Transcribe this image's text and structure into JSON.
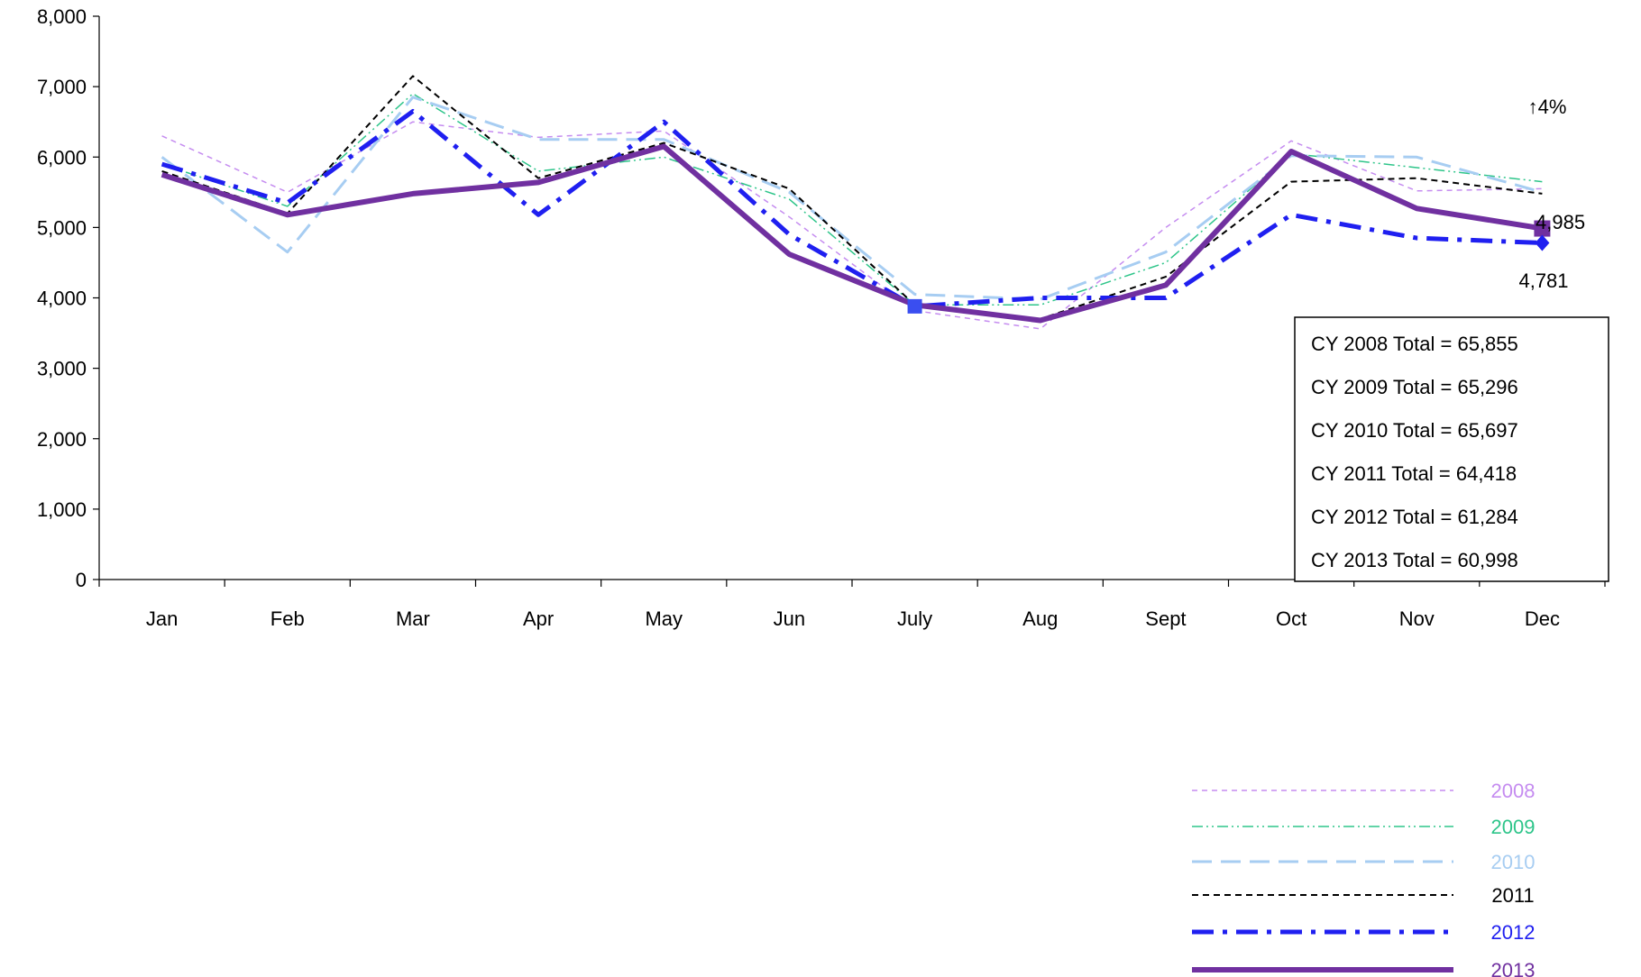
{
  "chart_data": {
    "type": "line",
    "categories": [
      "Jan",
      "Feb",
      "Mar",
      "Apr",
      "May",
      "Jun",
      "July",
      "Aug",
      "Sept",
      "Oct",
      "Nov",
      "Dec"
    ],
    "ylim": [
      0,
      8000
    ],
    "yticks": [
      "0",
      "1,000",
      "2,000",
      "3,000",
      "4,000",
      "5,000",
      "6,000",
      "7,000",
      "8,000"
    ],
    "grid": false,
    "legend_position": "bottom-right",
    "series": [
      {
        "name": "2008",
        "color": "#c58cf0",
        "style": "short-dash",
        "values": [
          6300,
          5500,
          6500,
          6280,
          6370,
          5150,
          3820,
          3560,
          5000,
          6230,
          5520,
          5550
        ]
      },
      {
        "name": "2009",
        "color": "#2ec58a",
        "style": "dash-dot-dot",
        "values": [
          5900,
          5300,
          6900,
          5800,
          6000,
          5400,
          3900,
          3900,
          4500,
          6050,
          5850,
          5650
        ]
      },
      {
        "name": "2010",
        "color": "#a7cdf2",
        "style": "long-dash",
        "values": [
          6000,
          4650,
          6850,
          6250,
          6250,
          5500,
          4050,
          3980,
          4650,
          6020,
          6000,
          5500
        ]
      },
      {
        "name": "2011",
        "color": "#000000",
        "style": "dash",
        "values": [
          5800,
          5200,
          7150,
          5700,
          6200,
          5550,
          3900,
          3700,
          4300,
          5650,
          5700,
          5480
        ]
      },
      {
        "name": "2012",
        "color": "#1f1ff0",
        "style": "dash-dot",
        "values": [
          5900,
          5350,
          6650,
          5180,
          6500,
          4900,
          3880,
          4000,
          4000,
          5180,
          4850,
          4781
        ]
      },
      {
        "name": "2013",
        "color": "#7030a0",
        "style": "solid",
        "values": [
          5750,
          5180,
          5480,
          5640,
          6150,
          4620,
          3900,
          3680,
          4180,
          6080,
          5270,
          4985
        ]
      }
    ],
    "annotations": {
      "pct_change": "↑4%",
      "pct_color": "#ff0066",
      "label_2013_dec": "4,985",
      "label_2012_dec": "4,781"
    },
    "totals_box": [
      "CY 2008 Total = 65,855",
      "CY 2009 Total = 65,296",
      "CY 2010 Total = 65,697",
      "CY 2011 Total = 64,418",
      "CY 2012 Total = 61,284",
      "CY 2013 Total = 60,998"
    ]
  }
}
